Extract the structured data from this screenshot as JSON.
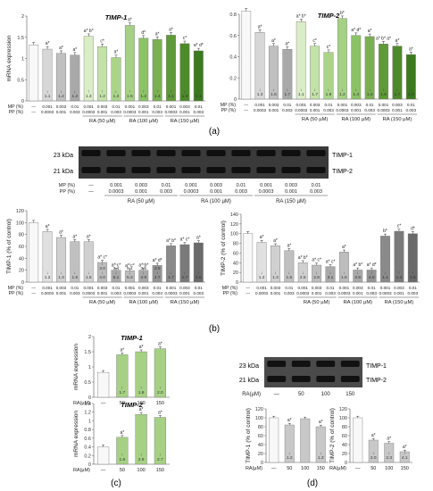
{
  "panel_labels": {
    "a": "(a)",
    "b": "(b)",
    "c": "(c)",
    "d": "(d)"
  },
  "blot_a": {
    "markers": [
      "23 kDa",
      "21 kDa"
    ],
    "bands": [
      "TIMP-1",
      "TIMP-2"
    ],
    "mp_label": "MP (%)",
    "pp_label": "PP (%)",
    "mp": [
      "—",
      "0.001",
      "0.003",
      "0.01",
      "0.001",
      "0.003",
      "0.01",
      "0.001",
      "0.003",
      "0.01"
    ],
    "pp": [
      "—",
      "0.0003",
      "0.001",
      "0.003",
      "0.0003",
      "0.001",
      "0.003",
      "0.0003",
      "0.001",
      "0.003"
    ],
    "groups": [
      "RA (50 µM)",
      "RA (100 µM)",
      "RA (150 µM)"
    ]
  },
  "blot_d": {
    "markers": [
      "23 kDa",
      "21 kDa"
    ],
    "bands": [
      "TIMP-1",
      "TIMP-2"
    ],
    "ra_label": "RA(µM)",
    "lanes": [
      "—",
      "50",
      "100",
      "150"
    ]
  },
  "chart_data": [
    {
      "id": "a1",
      "type": "bar",
      "title": "TIMP-1",
      "ylabel": "mRNA expression",
      "ylim": [
        0,
        2
      ],
      "yticks": [
        0,
        0.5,
        1,
        1.5,
        2
      ],
      "mp_label": "MP (%)",
      "pp_label": "PP (%)",
      "mp": [
        "—",
        "0.001",
        "0.003",
        "0.01",
        "0.001",
        "0.003",
        "0.01",
        "0.001",
        "0.003",
        "0.01",
        "0.001",
        "0.003",
        "0.01"
      ],
      "pp": [
        "—",
        "0.0003",
        "0.001",
        "0.003",
        "0.0003",
        "0.001",
        "0.003",
        "0.0003",
        "0.001",
        "0.003",
        "0.0003",
        "0.001",
        "0.003"
      ],
      "groups": [
        "RA (50 µM)",
        "RA (100 µM)",
        "RA (150 µM)"
      ],
      "values": [
        1.32,
        1.22,
        1.12,
        1.08,
        1.52,
        1.28,
        1.02,
        1.78,
        1.48,
        1.45,
        1.55,
        1.35,
        1.18
      ],
      "sig": [
        "",
        "a*",
        "a*",
        "a*",
        "a* b*",
        "c*",
        "a*",
        "a*",
        "d*",
        "a*",
        "a*",
        "c*",
        "a* d*"
      ],
      "fold": [
        "",
        "",
        "",
        "",
        "↑1.3",
        "↑1.2",
        "",
        "↑1.5",
        "↑1.2",
        "↑1.4",
        "↑1.1",
        "",
        "↑1.1"
      ],
      "fold2": [
        "",
        "↓1.1",
        "↓1.2",
        "↓1.2",
        "",
        "",
        "↓1.3",
        "",
        "",
        "",
        "",
        "↓1.3",
        ""
      ]
    },
    {
      "id": "a2",
      "type": "bar",
      "title": "TIMP-2",
      "ylabel": "",
      "ylim": [
        0,
        0.8
      ],
      "yticks": [
        0,
        0.2,
        0.4,
        0.6,
        0.8
      ],
      "mp_label": "MP (%)",
      "pp_label": "PP (%)",
      "mp": [
        "—",
        "0.001",
        "0.003",
        "0.01",
        "0.001",
        "0.003",
        "0.01",
        "0.001",
        "0.003",
        "0.01",
        "0.001",
        "0.003",
        "0.01"
      ],
      "pp": [
        "—",
        "0.0003",
        "0.001",
        "0.003",
        "0.0003",
        "0.001",
        "0.003",
        "0.0003",
        "0.001",
        "0.003",
        "0.0003",
        "0.001",
        "0.003"
      ],
      "groups": [
        "RA (50 µM)",
        "RA (100 µM)",
        "RA (150 µM)"
      ],
      "values": [
        0.83,
        0.63,
        0.5,
        0.47,
        0.73,
        0.5,
        0.44,
        0.76,
        0.6,
        0.59,
        0.52,
        0.5,
        0.42
      ],
      "sig": [
        "",
        "a*",
        "a*",
        "a*",
        "a* b*",
        "c*",
        "c*",
        "b*",
        "a* d*",
        "a*",
        "a* b* a*",
        "a*",
        "a*"
      ],
      "fold": [
        "",
        "",
        "",
        "",
        "",
        "",
        "",
        "",
        "",
        "",
        "",
        "",
        ""
      ],
      "fold2": [
        "",
        "↓1.3",
        "↓1.6",
        "↓1.7",
        "↓1.1",
        "↓1.7",
        "↓1.9",
        "↓1.2",
        "↓1.4",
        "↓1.4",
        "↓1.6",
        "↓1.7",
        "↓2.0"
      ]
    },
    {
      "id": "b1",
      "type": "bar",
      "title": "",
      "ylabel": "TIMP-1 (% of control)",
      "ylim": [
        0,
        120
      ],
      "yticks": [
        0,
        20,
        40,
        60,
        80,
        100,
        120
      ],
      "mp_label": "MP (%)",
      "pp_label": "PP (%)",
      "mp": [
        "—",
        "0.001",
        "0.003",
        "0.01",
        "0.001",
        "0.003",
        "0.01",
        "0.001",
        "0.003",
        "0.01",
        "0.001",
        "0.003",
        "0.01"
      ],
      "pp": [
        "—",
        "0.0003",
        "0.001",
        "0.003",
        "0.0003",
        "0.001",
        "0.003",
        "0.0003",
        "0.001",
        "0.003",
        "0.0003",
        "0.001",
        "0.003"
      ],
      "groups": [
        "RA (50 µM)",
        "RA (100 µM)",
        "RA (150 µM)"
      ],
      "values": [
        100,
        85,
        75,
        68,
        68,
        33,
        20,
        19,
        20,
        28,
        61,
        63,
        66
      ],
      "sig": [
        "",
        "a*",
        "a*",
        "a*",
        "a*",
        "a* c*",
        "a* c*",
        "a* c*",
        "a* b*",
        "a* d*",
        "a* b*",
        "a* c*",
        "a*"
      ],
      "fold": [
        "",
        "",
        "",
        "",
        "",
        "↓3.0",
        "↓3.4",
        "↓5.1",
        "↓3.5",
        "↓3.5",
        "",
        "",
        ""
      ],
      "fold2": [
        "",
        "↓1.2",
        "↓1.3",
        "↓1.5",
        "↓1.5",
        "↓4.0",
        "↓5.1",
        "↓5.3",
        "↓4.9",
        "↓4.7",
        "↓1.7",
        "↓1.7",
        "↓1.5"
      ]
    },
    {
      "id": "b2",
      "type": "bar",
      "title": "",
      "ylabel": "TIMP-2 (% of control)",
      "ylim": [
        0,
        140
      ],
      "yticks": [
        0,
        20,
        40,
        60,
        80,
        100,
        120,
        140
      ],
      "mp_label": "MP (%)",
      "pp_label": "PP (%)",
      "mp": [
        "—",
        "0.001",
        "0.003",
        "0.01",
        "0.001",
        "0.003",
        "0.01",
        "0.001",
        "0.003",
        "0.01",
        "0.001",
        "0.003",
        "0.01"
      ],
      "pp": [
        "—",
        "0.0003",
        "0.001",
        "0.003",
        "0.0003",
        "0.001",
        "0.003",
        "0.0003",
        "0.001",
        "0.003",
        "0.0003",
        "0.001",
        "0.003"
      ],
      "groups": [
        "RA (50 µM)",
        "RA (100 µM)",
        "RA (150 µM)"
      ],
      "values": [
        100,
        82,
        75,
        65,
        40,
        35,
        32,
        62,
        25,
        25,
        95,
        105,
        100
      ],
      "sig": [
        "",
        "a*",
        "a*",
        "a*",
        "a* b*",
        "a* c*",
        "a* c*",
        "a*",
        "a* b*",
        "a* d*",
        "b*",
        "c*",
        "d*"
      ],
      "fold": [
        "",
        "",
        "",
        "",
        "",
        "",
        "",
        "",
        "",
        "",
        "",
        "",
        ""
      ],
      "fold2": [
        "",
        "↓1.2",
        "↓1.3",
        "↓1.5",
        "↓2.5",
        "↓2.8",
        "↓3.1",
        "↓1.6",
        "↓3.9",
        "↓4.0",
        "↓1.1",
        "↑1.4",
        "↑1.6"
      ]
    },
    {
      "id": "c1",
      "type": "bar",
      "title": "TIMP-1",
      "ylabel": "mRNA expression",
      "ylim": [
        0,
        2
      ],
      "yticks": [
        0,
        0.5,
        1,
        1.5,
        2
      ],
      "x_label": "RA(µM)",
      "categories": [
        "—",
        "50",
        "100",
        "150"
      ],
      "values": [
        0.82,
        1.4,
        1.5,
        1.6
      ],
      "sig": [
        "",
        "a*",
        "a*",
        "a*"
      ],
      "fold": [
        "",
        "↑1.7",
        "↑1.8",
        "↑2.0"
      ]
    },
    {
      "id": "c2",
      "type": "bar",
      "title": "TIMP-2",
      "ylabel": "mRNA expression",
      "ylim": [
        0,
        1.4
      ],
      "yticks": [
        0,
        0.2,
        0.4,
        0.6,
        0.8,
        1,
        1.2,
        1.4
      ],
      "x_label": "RA(µM)",
      "categories": [
        "—",
        "50",
        "100",
        "150"
      ],
      "values": [
        0.4,
        0.62,
        1.15,
        1.08
      ],
      "sig": [
        "",
        "a*",
        "a*",
        "a*"
      ],
      "fold": [
        "",
        "↑1.6",
        "↑2.9",
        "↑2.7"
      ]
    },
    {
      "id": "d1",
      "type": "bar",
      "title": "",
      "ylabel": "TIMP-1 (% of control)",
      "ylim": [
        0,
        120
      ],
      "yticks": [
        0,
        20,
        40,
        60,
        80,
        100,
        120
      ],
      "x_label": "RA(µM)",
      "categories": [
        "—",
        "50",
        "100",
        "150"
      ],
      "values": [
        100,
        84,
        98,
        80
      ],
      "sig": [
        "",
        "a*",
        "",
        "a*"
      ],
      "fold": [
        "",
        "↓1.2",
        "",
        "↓1.3"
      ]
    },
    {
      "id": "d2",
      "type": "bar",
      "title": "",
      "ylabel": "TIMP-2 (% of control)",
      "ylim": [
        0,
        120
      ],
      "yticks": [
        0,
        20,
        40,
        60,
        80,
        100,
        120
      ],
      "x_label": "RA(µM)",
      "categories": [
        "—",
        "50",
        "100",
        "150"
      ],
      "values": [
        100,
        50,
        43,
        24
      ],
      "sig": [
        "",
        "a*",
        "a*",
        "a*"
      ],
      "fold": [
        "",
        "↓2.0",
        "↓2.3",
        "↓4.1"
      ]
    }
  ]
}
